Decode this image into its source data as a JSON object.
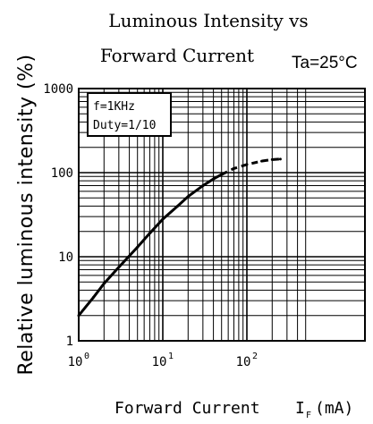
{
  "chart_data": {
    "type": "line",
    "title_line1": "Luminous Intensity vs",
    "title_line2": "Forward Current",
    "condition": "Ta=25°C",
    "ylabel": "Relative luminous intensity (%)",
    "xlabel": "Forward Current",
    "xlabel_symbol": "I",
    "xlabel_subscript": "F",
    "xlabel_unit": "(mA)",
    "x_scale": "log",
    "y_scale": "log",
    "xlim": [
      1,
      500
    ],
    "ylim": [
      1,
      1000
    ],
    "x_ticks": [
      {
        "value": 1,
        "base": "10",
        "exp": "0"
      },
      {
        "value": 10,
        "base": "10",
        "exp": "1"
      },
      {
        "value": 100,
        "base": "10",
        "exp": "2"
      }
    ],
    "y_ticks": [
      {
        "value": 1,
        "label": "1"
      },
      {
        "value": 10,
        "label": "10"
      },
      {
        "value": 100,
        "label": "100"
      },
      {
        "value": 1000,
        "label": "1000"
      }
    ],
    "grid": true,
    "annotation_lines": [
      "f=1KHz",
      "Duty=1/10"
    ],
    "series": [
      {
        "solid": [
          {
            "x": 1,
            "y": 2
          },
          {
            "x": 1.5,
            "y": 3.3
          },
          {
            "x": 2,
            "y": 4.8
          },
          {
            "x": 3,
            "y": 7.5
          },
          {
            "x": 5,
            "y": 13
          },
          {
            "x": 7,
            "y": 19
          },
          {
            "x": 10,
            "y": 28
          },
          {
            "x": 15,
            "y": 40
          },
          {
            "x": 20,
            "y": 52
          },
          {
            "x": 30,
            "y": 70
          },
          {
            "x": 40,
            "y": 84
          },
          {
            "x": 50,
            "y": 95
          }
        ],
        "dashed": [
          {
            "x": 50,
            "y": 95
          },
          {
            "x": 70,
            "y": 112
          },
          {
            "x": 100,
            "y": 125
          },
          {
            "x": 150,
            "y": 137
          },
          {
            "x": 200,
            "y": 143
          },
          {
            "x": 250,
            "y": 145
          }
        ]
      }
    ]
  }
}
